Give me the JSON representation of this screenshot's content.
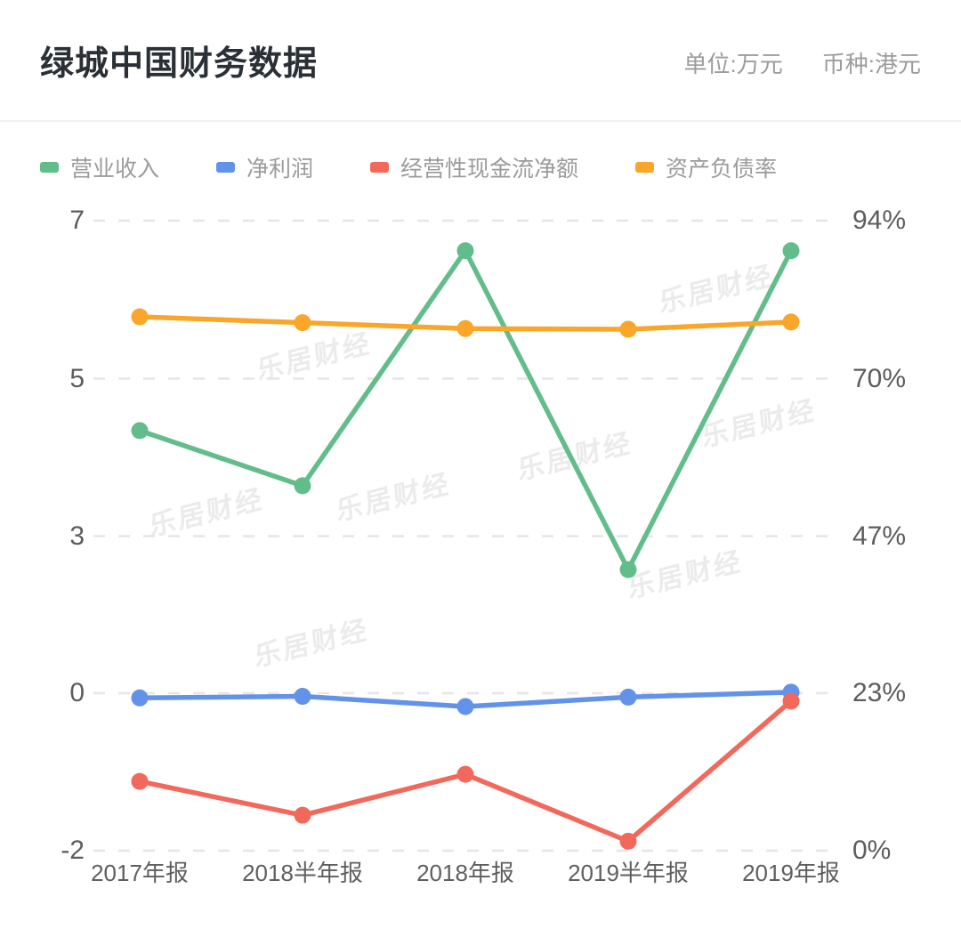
{
  "header": {
    "title": "绿城中国财务数据",
    "unit_label": "单位:万元",
    "currency_label": "币种:港元"
  },
  "watermark": {
    "text": "乐居财经"
  },
  "chart_data": {
    "type": "line",
    "categories": [
      "2017年报",
      "2018半年报",
      "2018年报",
      "2019半年报",
      "2019年报"
    ],
    "left_axis": {
      "tick_labels": [
        "7",
        "5",
        "3",
        "0",
        "-2"
      ],
      "tick_values": [
        7,
        5,
        3,
        0,
        -2
      ]
    },
    "right_axis": {
      "tick_labels": [
        "94%",
        "70%",
        "47%",
        "23%",
        "0%"
      ],
      "tick_values": [
        94,
        70,
        47,
        23,
        0
      ]
    },
    "grid": "horizontal-dashed",
    "legend_position": "top-left",
    "series": [
      {
        "name": "营业收入",
        "axis": "left",
        "color": "#62bd8b",
        "values": [
          4.34,
          3.64,
          6.62,
          2.36,
          6.62
        ]
      },
      {
        "name": "净利润",
        "axis": "left",
        "color": "#6292ea",
        "values": [
          -0.06,
          -0.04,
          -0.17,
          -0.05,
          0.02
        ]
      },
      {
        "name": "经营性现金流净额",
        "axis": "left",
        "color": "#f2695c",
        "values": [
          -1.12,
          -1.55,
          -1.03,
          -1.88,
          -0.1
        ]
      },
      {
        "name": "资产负债率",
        "axis": "right",
        "color": "#f9a62b",
        "values": [
          79.4,
          78.5,
          77.6,
          77.5,
          78.6
        ]
      }
    ]
  }
}
